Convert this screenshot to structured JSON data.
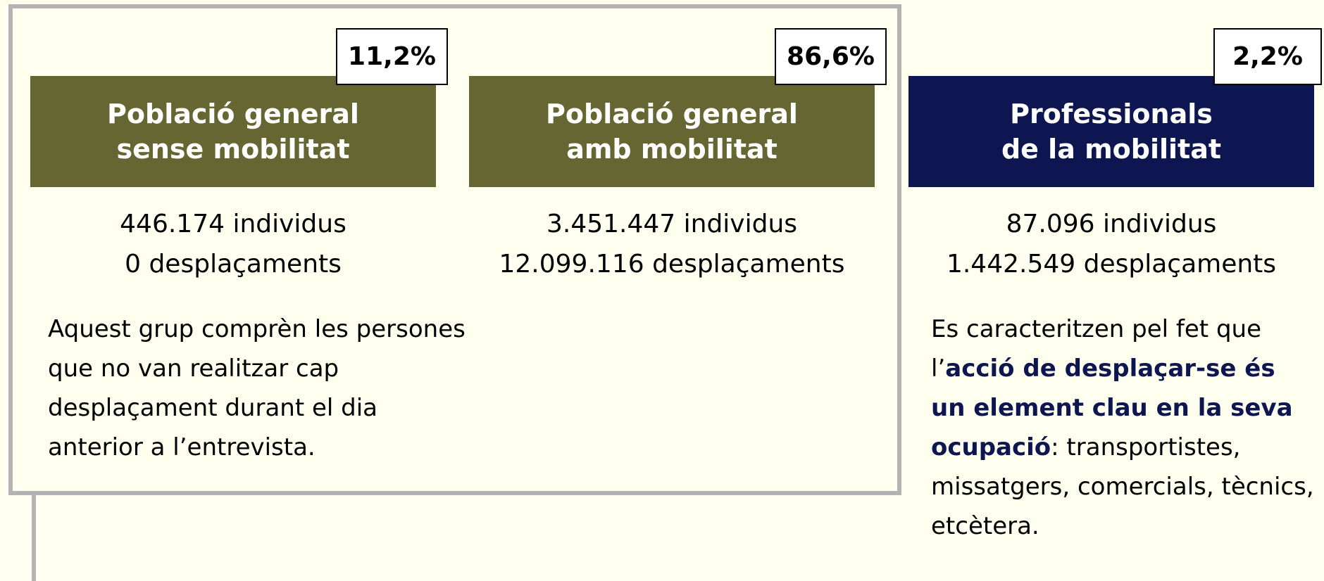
{
  "columns": [
    {
      "badge": "11,2%",
      "title_lines": [
        "Població general",
        "sense mobilitat"
      ],
      "header_color": "#666633",
      "stats": [
        "446.174 individus",
        "0 desplaçaments"
      ],
      "description": [
        {
          "text": "Aquest grup comprèn les persones que no van realitzar cap desplaçament durant el dia anterior a l’entrevista."
        }
      ]
    },
    {
      "badge": "86,6%",
      "title_lines": [
        "Població general",
        "amb mobilitat"
      ],
      "header_color": "#666633",
      "stats": [
        "3.451.447 individus",
        "12.099.116 desplaçaments"
      ],
      "description": []
    },
    {
      "badge": "2,2%",
      "title_lines": [
        "Professionals",
        "de la mobilitat"
      ],
      "header_color": "#0d1650",
      "stats": [
        "87.096 individus",
        "1.442.549 desplaçaments"
      ],
      "description": [
        {
          "text": "Es caracteritzen pel fet que l’"
        },
        {
          "text": "acció de desplaçar-se és un element clau en la seva ocupació",
          "strong": true
        },
        {
          "text": ": transportistes, missatgers, comercials, tècnics, etcètera."
        }
      ]
    }
  ]
}
